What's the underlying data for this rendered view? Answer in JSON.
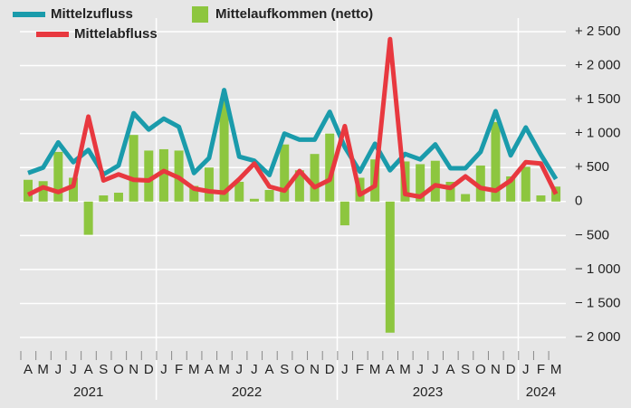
{
  "chart_data": {
    "type": "bar-line",
    "categories": [
      "A",
      "M",
      "J",
      "J",
      "A",
      "S",
      "O",
      "N",
      "D",
      "J",
      "F",
      "M",
      "A",
      "M",
      "J",
      "J",
      "A",
      "S",
      "O",
      "N",
      "D",
      "J",
      "F",
      "M",
      "A",
      "M",
      "J",
      "J",
      "A",
      "S",
      "O",
      "N",
      "D",
      "J",
      "F",
      "M"
    ],
    "year_labels": [
      "2021",
      "2022",
      "2023",
      "2024"
    ],
    "series": [
      {
        "name": "Mittelaufkommen (netto)",
        "color": "#8dc63f",
        "kind": "bar",
        "values": [
          320,
          300,
          730,
          350,
          -490,
          90,
          130,
          980,
          750,
          770,
          750,
          230,
          500,
          1510,
          290,
          40,
          170,
          840,
          460,
          700,
          1000,
          -350,
          350,
          620,
          -1930,
          590,
          550,
          600,
          290,
          110,
          530,
          1170,
          370,
          510,
          90,
          220
        ]
      },
      {
        "name": "Mittelzufluss",
        "color": "#1a9bab",
        "kind": "line",
        "values": [
          420,
          500,
          870,
          580,
          760,
          400,
          530,
          1300,
          1060,
          1220,
          1100,
          420,
          640,
          1640,
          660,
          600,
          390,
          1000,
          910,
          910,
          1320,
          800,
          440,
          850,
          460,
          700,
          620,
          840,
          490,
          490,
          730,
          1330,
          680,
          1090,
          690,
          330
        ]
      },
      {
        "name": "Mittelabfluss",
        "color": "#e8383f",
        "kind": "line",
        "values": [
          100,
          210,
          140,
          230,
          1250,
          310,
          400,
          320,
          310,
          450,
          350,
          190,
          150,
          130,
          330,
          560,
          220,
          160,
          450,
          210,
          320,
          1110,
          100,
          230,
          2390,
          110,
          70,
          240,
          200,
          370,
          200,
          160,
          310,
          580,
          560,
          110
        ]
      }
    ],
    "ylim": [
      -2000,
      2500
    ],
    "yticks": [
      {
        "value": 2500,
        "label": "+ 2 500"
      },
      {
        "value": 2000,
        "label": "+ 2 000"
      },
      {
        "value": 1500,
        "label": "+ 1 500"
      },
      {
        "value": 1000,
        "label": "+ 1 000"
      },
      {
        "value": 500,
        "label": "+ 500"
      },
      0,
      {
        "value": -500,
        "label": "− 500"
      },
      {
        "value": -1000,
        "label": "− 1 000"
      },
      {
        "value": -1500,
        "label": "− 1 500"
      },
      {
        "value": -2000,
        "label": "− 2 000"
      }
    ],
    "grid": true
  }
}
